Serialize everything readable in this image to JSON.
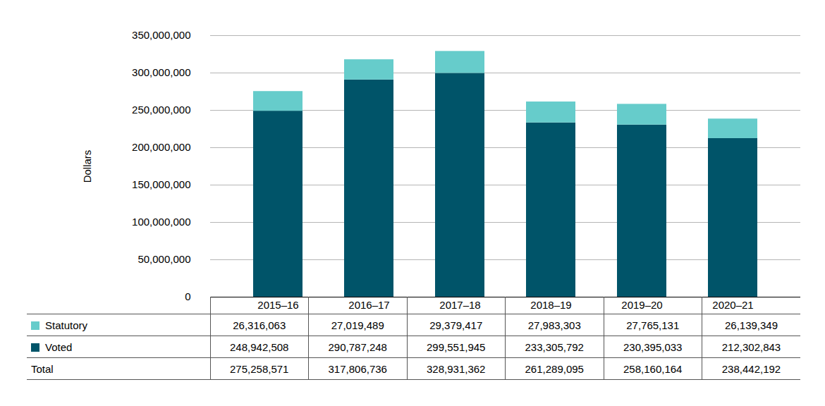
{
  "chart_data": {
    "type": "bar",
    "stacked": true,
    "ylabel": "Dollars",
    "categories": [
      "2015–16",
      "2016–17",
      "2017–18",
      "2018–19",
      "2019–20",
      "2020–21"
    ],
    "series": [
      {
        "name": "Statutory",
        "color": "#66cccb",
        "values": [
          26316063,
          27019489,
          29379417,
          27983303,
          27765131,
          26139349
        ],
        "value_labels": [
          "26,316,063",
          "27,019,489",
          "29,379,417",
          "27,983,303",
          "27,765,131",
          "26,139,349"
        ]
      },
      {
        "name": "Voted",
        "color": "#005469",
        "values": [
          248942508,
          290787248,
          299551945,
          233305792,
          230395033,
          212302843
        ],
        "value_labels": [
          "248,942,508",
          "290,787,248",
          "299,551,945",
          "233,305,792",
          "230,395,033",
          "212,302,843"
        ]
      }
    ],
    "totals": {
      "name": "Total",
      "values": [
        275258571,
        317806736,
        328931362,
        261289095,
        258160164,
        238442192
      ],
      "value_labels": [
        "275,258,571",
        "317,806,736",
        "328,931,362",
        "261,289,095",
        "258,160,164",
        "238,442,192"
      ]
    },
    "ylim": [
      0,
      350000000
    ],
    "yticks": [
      0,
      {
        "value": 50000000,
        "label": "50,000,000"
      },
      {
        "value": 100000000,
        "label": "100,000,000"
      },
      {
        "value": 150000000,
        "label": "150,000,000"
      },
      {
        "value": 200000000,
        "label": "200,000,000"
      },
      {
        "value": 250000000,
        "label": "250,000,000"
      },
      {
        "value": 300000000,
        "label": "300,000,000"
      },
      {
        "value": 350000000,
        "label": "350,000,000"
      }
    ],
    "grid": true,
    "data_labels": true,
    "legend": "bottom"
  }
}
